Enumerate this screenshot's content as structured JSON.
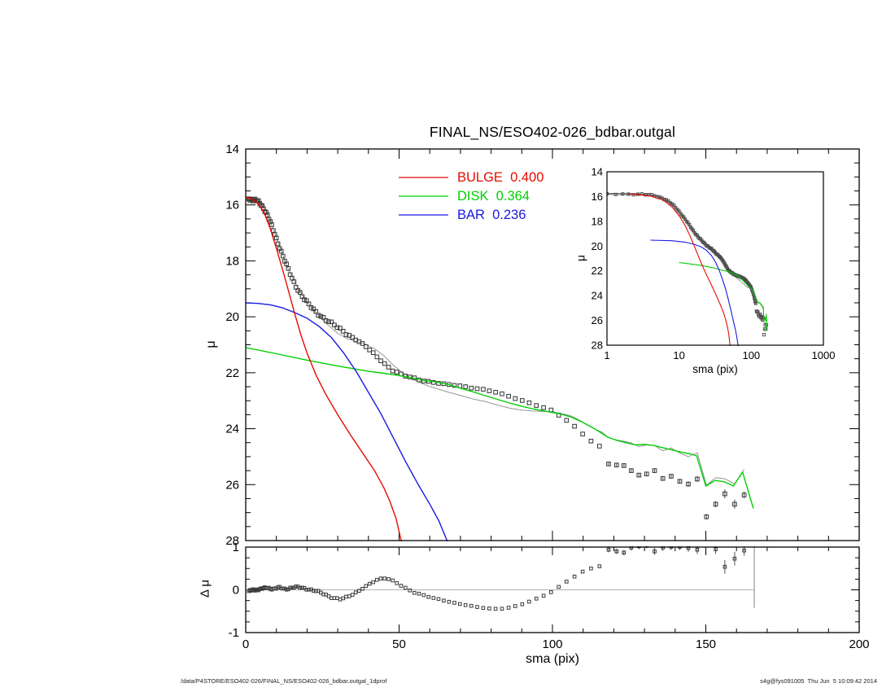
{
  "title": "FINAL_NS/ESO402-026_bdbar.outgal",
  "labels": {
    "mu": "μ",
    "dmu": "Δ μ",
    "sma": "sma (pix)"
  },
  "footer": {
    "left": "/data/P4STORE/ESO402-026/FINAL_NS/ESO402-026_bdbar.outgal_1dprof",
    "right": "s4g@fys091005  Thu Jun  5 10:09:42 2014"
  },
  "legend": {
    "items": [
      {
        "name": "bulge",
        "text": "BULGE  0.400",
        "label": "BULGE",
        "value": 0.4,
        "color": "#e60b00"
      },
      {
        "name": "disk",
        "text": "DISK  0.364",
        "label": "DISK",
        "value": 0.364,
        "color": "#00d000"
      },
      {
        "name": "bar",
        "text": "BAR  0.236",
        "label": "BAR",
        "value": 0.236,
        "color": "#1a1ae0"
      }
    ]
  },
  "colors": {
    "bulge": "#e60b00",
    "disk": "#00d000",
    "bar": "#1a1ae0",
    "marker": "#3a3a3a",
    "model": "#8a8a8a",
    "band": "#666666",
    "zero_line": "#b3b3b3",
    "end_bar": "#999999",
    "frame": "#000000"
  },
  "chart_data": {
    "type": "scatter+line multi-panel (surface-brightness profile decomposition)",
    "panels": [
      {
        "id": "main",
        "title": "FINAL_NS/ESO402-026_bdbar.outgal",
        "xlabel": "",
        "ylabel": "μ",
        "xlim": [
          0,
          200
        ],
        "ylim": [
          14,
          28
        ],
        "y_inverted": true,
        "x_ticks": [
          0,
          50,
          100,
          150,
          200
        ],
        "x_minor_step": 10,
        "y_ticks": [
          14,
          16,
          18,
          20,
          22,
          24,
          26,
          28
        ],
        "y_minor_step": 0.5,
        "legend_position": "upper-middle",
        "grid": false
      },
      {
        "id": "inset",
        "xlabel": "sma (pix)",
        "ylabel": "μ",
        "xscale": "log",
        "xlim": [
          1,
          1000
        ],
        "ylim": [
          14,
          28
        ],
        "y_inverted": true,
        "x_ticks": [
          "1",
          "10",
          "100",
          "1000"
        ],
        "y_ticks": [
          14,
          16,
          18,
          20,
          22,
          24,
          26,
          28
        ],
        "y_minor_step": 0.5,
        "grid": false
      },
      {
        "id": "residual",
        "xlabel": "sma (pix)",
        "ylabel": "Δ μ",
        "xlim": [
          0,
          200
        ],
        "ylim": [
          -1,
          1
        ],
        "x_ticks": [
          0,
          50,
          100,
          150,
          200
        ],
        "x_minor_step": 10,
        "y_ticks": [
          -1,
          0,
          1
        ],
        "y_minor_step": 0.25,
        "zero_line_x_end": 165.8,
        "end_bar": {
          "r": 165.8,
          "from": 1.02,
          "to": -0.42
        },
        "grid": false
      }
    ],
    "series": {
      "sampling": {
        "r0": 1.0,
        "growth": 1.022,
        "add": 0.3,
        "r_max": 116.5,
        "note_visible": "open-square markers, dense overlapping band at small radii"
      },
      "profile_mu_anchors": [
        [
          1,
          15.78
        ],
        [
          2,
          15.8
        ],
        [
          3,
          15.83
        ],
        [
          4,
          15.88
        ],
        [
          5,
          15.98
        ],
        [
          6,
          16.14
        ],
        [
          7,
          16.36
        ],
        [
          8,
          16.62
        ],
        [
          9,
          16.9
        ],
        [
          10,
          17.2
        ],
        [
          11,
          17.5
        ],
        [
          12,
          17.8
        ],
        [
          13,
          18.08
        ],
        [
          14,
          18.35
        ],
        [
          15,
          18.6
        ],
        [
          16,
          18.82
        ],
        [
          17,
          19.02
        ],
        [
          18,
          19.2
        ],
        [
          19,
          19.36
        ],
        [
          20,
          19.5
        ],
        [
          21,
          19.62
        ],
        [
          22,
          19.73
        ],
        [
          23,
          19.83
        ],
        [
          24,
          19.92
        ],
        [
          26,
          20.09
        ],
        [
          28,
          20.24
        ],
        [
          30,
          20.39
        ],
        [
          33,
          20.6
        ],
        [
          36,
          20.82
        ],
        [
          39,
          21.05
        ],
        [
          42,
          21.35
        ],
        [
          45,
          21.65
        ],
        [
          48,
          21.92
        ],
        [
          51,
          22.08
        ],
        [
          54,
          22.18
        ],
        [
          57,
          22.26
        ],
        [
          60,
          22.32
        ],
        [
          63,
          22.37
        ],
        [
          66,
          22.42
        ],
        [
          70,
          22.48
        ],
        [
          74,
          22.55
        ],
        [
          78,
          22.6
        ],
        [
          82,
          22.7
        ],
        [
          86,
          22.85
        ],
        [
          90,
          23.0
        ],
        [
          94,
          23.14
        ],
        [
          98,
          23.28
        ],
        [
          100,
          23.35
        ],
        [
          102,
          23.5
        ],
        [
          104,
          23.65
        ],
        [
          106,
          23.8
        ],
        [
          108,
          24.0
        ],
        [
          110,
          24.2
        ],
        [
          112,
          24.4
        ],
        [
          114,
          24.55
        ],
        [
          116,
          24.68
        ]
      ],
      "residual_dmu_anchors": [
        [
          1,
          -0.03
        ],
        [
          3,
          0.0
        ],
        [
          5,
          0.02
        ],
        [
          7,
          0.05
        ],
        [
          9,
          0.02
        ],
        [
          11,
          0.05
        ],
        [
          13,
          0.02
        ],
        [
          15,
          0.05
        ],
        [
          17,
          0.06
        ],
        [
          19,
          0.04
        ],
        [
          21,
          0.01
        ],
        [
          23,
          -0.03
        ],
        [
          25,
          -0.09
        ],
        [
          27,
          -0.15
        ],
        [
          29,
          -0.19
        ],
        [
          31,
          -0.21
        ],
        [
          33,
          -0.18
        ],
        [
          35,
          -0.11
        ],
        [
          37,
          -0.02
        ],
        [
          39,
          0.08
        ],
        [
          41,
          0.17
        ],
        [
          43,
          0.24
        ],
        [
          45,
          0.27
        ],
        [
          47,
          0.24
        ],
        [
          49,
          0.17
        ],
        [
          51,
          0.09
        ],
        [
          53,
          0.01
        ],
        [
          55,
          -0.06
        ],
        [
          58,
          -0.13
        ],
        [
          61,
          -0.19
        ],
        [
          64,
          -0.24
        ],
        [
          67,
          -0.29
        ],
        [
          70,
          -0.33
        ],
        [
          73,
          -0.37
        ],
        [
          76,
          -0.41
        ],
        [
          79,
          -0.44
        ],
        [
          82,
          -0.45
        ],
        [
          85,
          -0.43
        ],
        [
          88,
          -0.38
        ],
        [
          91,
          -0.31
        ],
        [
          94,
          -0.23
        ],
        [
          97,
          -0.14
        ],
        [
          100,
          -0.04
        ],
        [
          102,
          0.06
        ],
        [
          104,
          0.16
        ],
        [
          106,
          0.26
        ],
        [
          108,
          0.35
        ],
        [
          110,
          0.43
        ],
        [
          112,
          0.49
        ],
        [
          114,
          0.53
        ],
        [
          116,
          0.57
        ]
      ],
      "outer_points": [
        {
          "r": 118.3,
          "mu": 25.26,
          "dmu": 0.94,
          "err": 0.06
        },
        {
          "r": 120.9,
          "mu": 25.3,
          "dmu": 0.9,
          "err": 0.06
        },
        {
          "r": 123.3,
          "mu": 25.32,
          "dmu": 0.87,
          "err": 0.06
        },
        {
          "r": 125.7,
          "mu": 25.5,
          "dmu": 0.99,
          "err": 0.07
        },
        {
          "r": 128.2,
          "mu": 25.66,
          "dmu": 1.02,
          "err": 0.07
        },
        {
          "r": 130.7,
          "mu": 25.62,
          "dmu": 1.04,
          "err": 0.07
        },
        {
          "r": 133.3,
          "mu": 25.5,
          "dmu": 0.9,
          "err": 0.08
        },
        {
          "r": 136.0,
          "mu": 25.78,
          "dmu": 0.99,
          "err": 0.08
        },
        {
          "r": 138.7,
          "mu": 25.7,
          "dmu": 1.01,
          "err": 0.08
        },
        {
          "r": 141.5,
          "mu": 25.88,
          "dmu": 1.01,
          "err": 0.08
        },
        {
          "r": 144.3,
          "mu": 25.98,
          "dmu": 0.98,
          "err": 0.09
        },
        {
          "r": 147.2,
          "mu": 25.8,
          "dmu": 0.94,
          "err": 0.1
        },
        {
          "r": 150.2,
          "mu": 27.15,
          "dmu": 1.13,
          "err": 0.1
        },
        {
          "r": 153.2,
          "mu": 26.7,
          "dmu": 0.95,
          "err": 0.11
        },
        {
          "r": 156.2,
          "mu": 26.33,
          "dmu": 0.54,
          "err": 0.16
        },
        {
          "r": 159.4,
          "mu": 26.7,
          "dmu": 0.73,
          "err": 0.16
        },
        {
          "r": 162.5,
          "mu": 26.37,
          "dmu": 0.92,
          "err": 0.12
        }
      ],
      "bulge_curve": [
        [
          0,
          15.72
        ],
        [
          2,
          15.78
        ],
        [
          4,
          15.95
        ],
        [
          6,
          16.28
        ],
        [
          8,
          16.85
        ],
        [
          10,
          17.55
        ],
        [
          12,
          18.3
        ],
        [
          14,
          19.1
        ],
        [
          16,
          19.9
        ],
        [
          18,
          20.65
        ],
        [
          20,
          21.3
        ],
        [
          23,
          22.1
        ],
        [
          26,
          22.75
        ],
        [
          30,
          23.5
        ],
        [
          34,
          24.2
        ],
        [
          38,
          24.85
        ],
        [
          42,
          25.5
        ],
        [
          45,
          26.1
        ],
        [
          47,
          26.6
        ],
        [
          49,
          27.2
        ],
        [
          51,
          28.15
        ]
      ],
      "disk_curve": [
        [
          0,
          21.1
        ],
        [
          10,
          21.32
        ],
        [
          20,
          21.55
        ],
        [
          30,
          21.76
        ],
        [
          40,
          21.95
        ],
        [
          45,
          22.02
        ],
        [
          50,
          22.1
        ],
        [
          55,
          22.2
        ],
        [
          58,
          22.28
        ],
        [
          62,
          22.32
        ],
        [
          66,
          22.42
        ],
        [
          70,
          22.55
        ],
        [
          74,
          22.68
        ],
        [
          78,
          22.82
        ],
        [
          82,
          22.95
        ],
        [
          86,
          23.08
        ],
        [
          90,
          23.2
        ],
        [
          94,
          23.3
        ],
        [
          98,
          23.38
        ],
        [
          102,
          23.46
        ],
        [
          106,
          23.58
        ],
        [
          110,
          23.78
        ],
        [
          114,
          24.02
        ],
        [
          118,
          24.3
        ],
        [
          121,
          24.42
        ],
        [
          124,
          24.5
        ],
        [
          127,
          24.58
        ],
        [
          130,
          24.56
        ],
        [
          133,
          24.6
        ],
        [
          136,
          24.68
        ],
        [
          139,
          24.76
        ],
        [
          142,
          24.84
        ],
        [
          145,
          24.9
        ],
        [
          147,
          24.97
        ],
        [
          150,
          26.05
        ],
        [
          153,
          25.85
        ],
        [
          156,
          25.9
        ],
        [
          159,
          26.05
        ],
        [
          162,
          25.55
        ],
        [
          165.5,
          26.85
        ]
      ],
      "bar_curve": [
        [
          0,
          19.5
        ],
        [
          4,
          19.52
        ],
        [
          8,
          19.57
        ],
        [
          12,
          19.68
        ],
        [
          16,
          19.85
        ],
        [
          20,
          20.05
        ],
        [
          24,
          20.35
        ],
        [
          28,
          20.75
        ],
        [
          32,
          21.3
        ],
        [
          36,
          21.95
        ],
        [
          40,
          22.7
        ],
        [
          44,
          23.45
        ],
        [
          48,
          24.3
        ],
        [
          52,
          25.15
        ],
        [
          56,
          25.95
        ],
        [
          60,
          26.7
        ],
        [
          63,
          27.3
        ],
        [
          66,
          28.1
        ]
      ],
      "model_total": "profile_mu_anchors minus residual_dmu_anchors (thin grey line)"
    }
  }
}
